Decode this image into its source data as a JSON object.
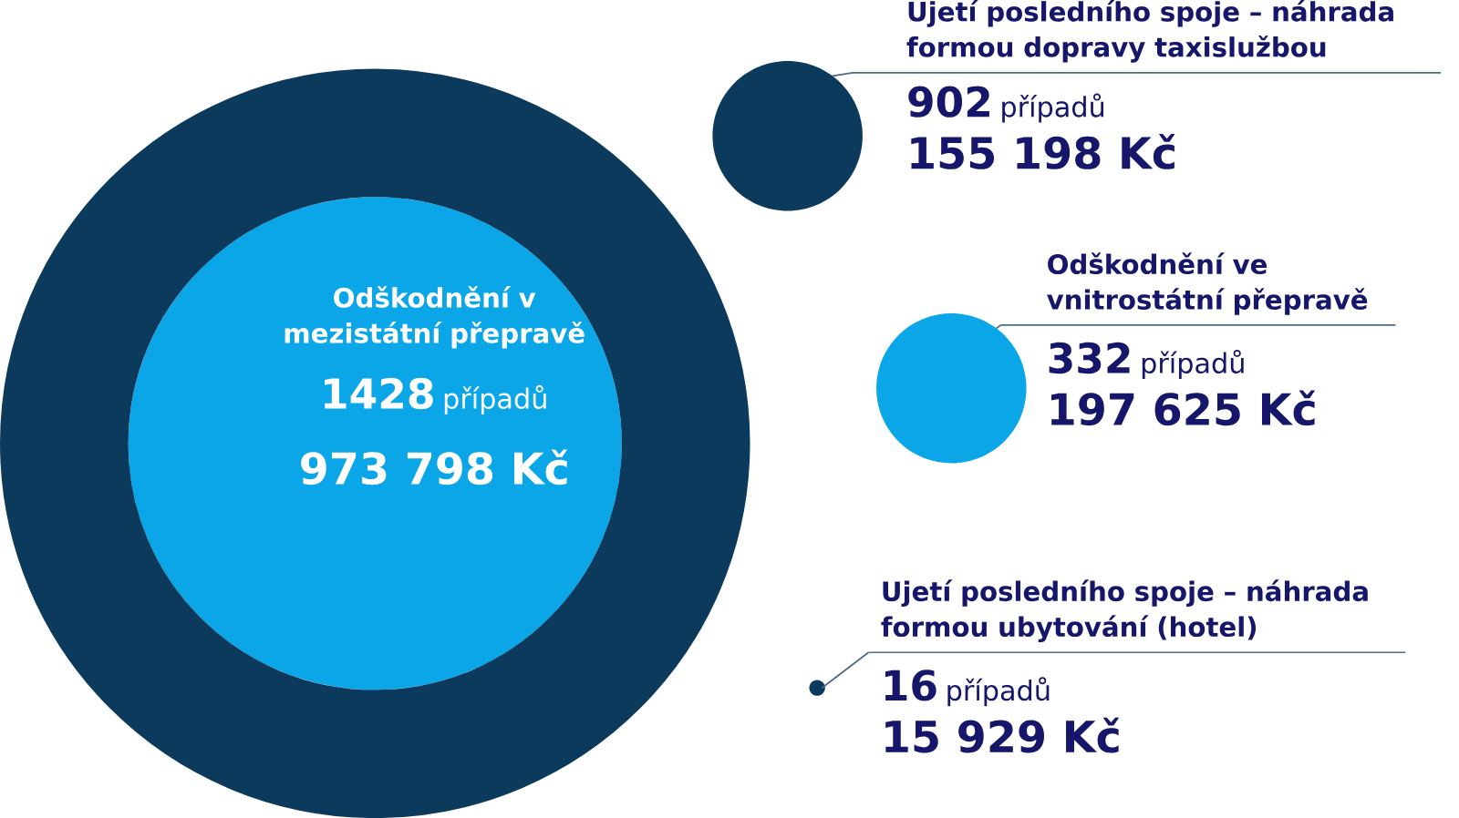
{
  "chart_data": {
    "type": "other",
    "categories": [
      "Odškodnění v mezistátní přepravě",
      "Ujetí posledního spoje – náhrada formou dopravy taxislužbou",
      "Odškodnění ve vnitrostátní přepravě",
      "Ujetí posledního spoje – náhrada formou ubytování (hotel)"
    ],
    "colors": [
      "#0aa6e8",
      "#0b3a5c",
      "#0aa6e8",
      "#0b3a5c"
    ],
    "series": [
      {
        "name": "případů",
        "values": [
          1428,
          902,
          332,
          16
        ]
      }
    ],
    "data_labels": true,
    "annotations": [
      "973 798 Kč",
      "155 198 Kč",
      "197 625 Kč",
      "15 929 Kč"
    ]
  }
}
